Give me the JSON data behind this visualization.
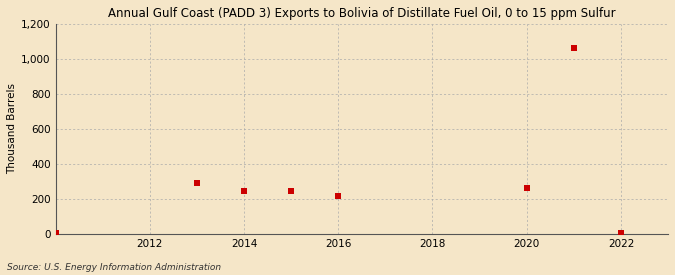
{
  "title": "Annual Gulf Coast (PADD 3) Exports to Bolivia of Distillate Fuel Oil, 0 to 15 ppm Sulfur",
  "ylabel": "Thousand Barrels",
  "source": "Source: U.S. Energy Information Administration",
  "background_color": "#f5e6c8",
  "plot_bg_color": "#f5e6c8",
  "x_data": [
    2010,
    2013,
    2014,
    2015,
    2016,
    2020,
    2021,
    2022
  ],
  "y_data": [
    3,
    290,
    245,
    248,
    218,
    263,
    1065,
    3
  ],
  "marker_color": "#cc0000",
  "marker_size": 4,
  "xlim": [
    2010.0,
    2023.0
  ],
  "ylim": [
    0,
    1200
  ],
  "yticks": [
    0,
    200,
    400,
    600,
    800,
    1000,
    1200
  ],
  "ytick_labels": [
    "0",
    "200",
    "400",
    "600",
    "800",
    "1,000",
    "1,200"
  ],
  "xticks": [
    2012,
    2014,
    2016,
    2018,
    2020,
    2022
  ],
  "grid_color": "#aaaaaa",
  "title_fontsize": 8.5,
  "axis_label_fontsize": 7.5,
  "tick_fontsize": 7.5,
  "source_fontsize": 6.5
}
